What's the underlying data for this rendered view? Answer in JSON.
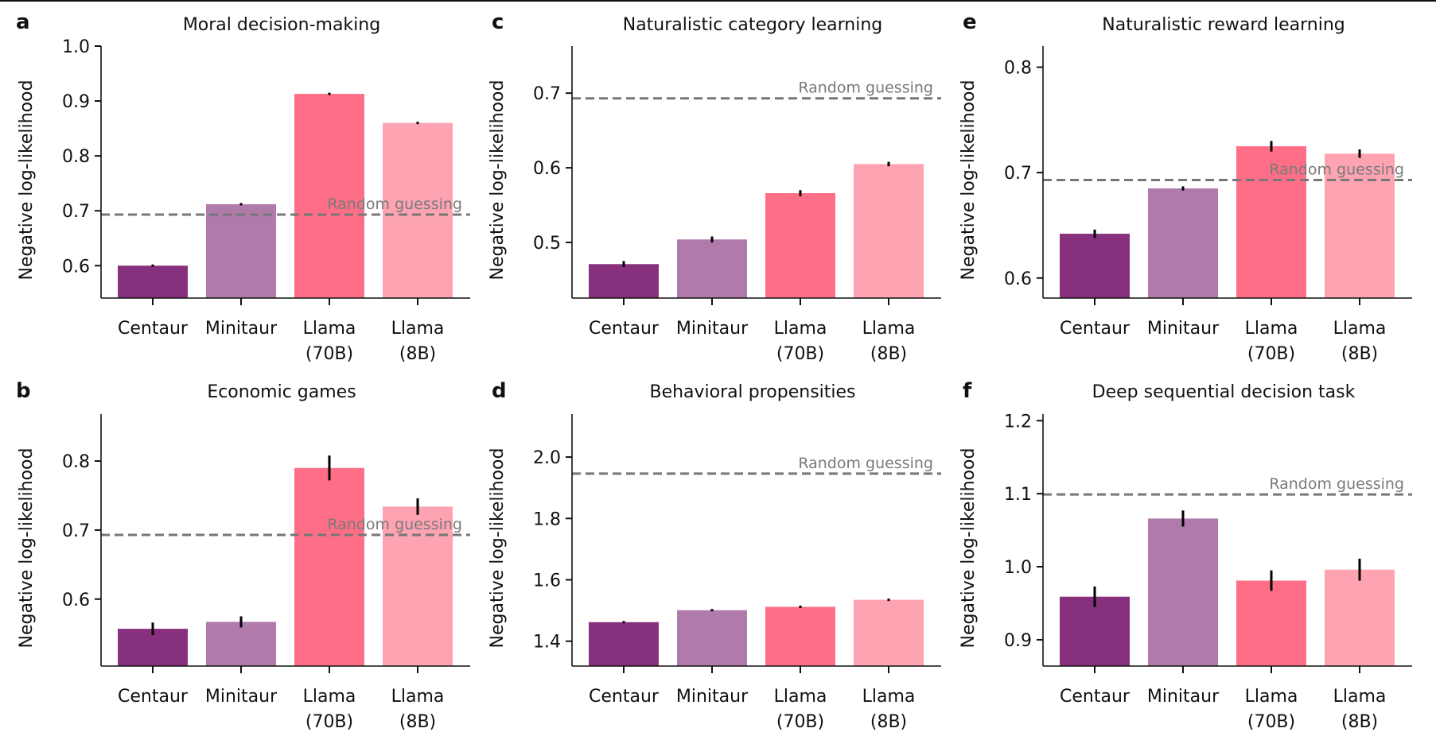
{
  "chart_data": [
    {
      "panel": "a",
      "type": "bar",
      "title": "Moral decision-making",
      "ylabel": "Negative log-likelihood",
      "xlabel": "",
      "categories": [
        "Centaur",
        "Minitaur",
        "Llama\n(70B)",
        "Llama\n(8B)"
      ],
      "values": [
        0.6,
        0.712,
        0.913,
        0.86
      ],
      "errors": [
        0.001,
        0.001,
        0.002,
        0.001
      ],
      "colors": [
        "#86307E",
        "#B07AAB",
        "#FE6F87",
        "#FDA3B2"
      ],
      "ylim": [
        0.541,
        1.0
      ],
      "yticks": [
        0.6,
        0.7,
        0.8,
        0.9,
        1.0
      ],
      "ytick_labels": [
        "0.6",
        "0.7",
        "0.8",
        "0.9",
        "1.0"
      ],
      "reference_line": {
        "value": 0.693,
        "label": "Random guessing"
      },
      "grid": false
    },
    {
      "panel": "b",
      "type": "bar",
      "title": "Economic games",
      "ylabel": "Negative log-likelihood",
      "xlabel": "",
      "categories": [
        "Centaur",
        "Minitaur",
        "Llama\n(70B)",
        "Llama\n(8B)"
      ],
      "values": [
        0.557,
        0.567,
        0.79,
        0.734
      ],
      "errors": [
        0.009,
        0.008,
        0.018,
        0.012
      ],
      "colors": [
        "#86307E",
        "#B07AAB",
        "#FE6F87",
        "#FDA3B2"
      ],
      "ylim": [
        0.503,
        0.868
      ],
      "yticks": [
        0.6,
        0.7,
        0.8
      ],
      "ytick_labels": [
        "0.6",
        "0.7",
        "0.8"
      ],
      "reference_line": {
        "value": 0.693,
        "label": "Random guessing"
      },
      "grid": false
    },
    {
      "panel": "c",
      "type": "bar",
      "title": "Naturalistic category learning",
      "ylabel": "Negative log-likelihood",
      "xlabel": "",
      "categories": [
        "Centaur",
        "Minitaur",
        "Llama\n(70B)",
        "Llama\n(8B)"
      ],
      "values": [
        0.471,
        0.504,
        0.566,
        0.605
      ],
      "errors": [
        0.004,
        0.004,
        0.004,
        0.003
      ],
      "colors": [
        "#86307E",
        "#B07AAB",
        "#FE6F87",
        "#FDA3B2"
      ],
      "ylim": [
        0.4255,
        0.763
      ],
      "yticks": [
        0.5,
        0.6,
        0.7
      ],
      "ytick_labels": [
        "0.5",
        "0.6",
        "0.7"
      ],
      "reference_line": {
        "value": 0.693,
        "label": "Random guessing"
      },
      "grid": false
    },
    {
      "panel": "d",
      "type": "bar",
      "title": "Behavioral propensities",
      "ylabel": "Negative log-likelihood",
      "xlabel": "",
      "categories": [
        "Centaur",
        "Minitaur",
        "Llama\n(70B)",
        "Llama\n(8B)"
      ],
      "values": [
        1.462,
        1.501,
        1.512,
        1.535
      ],
      "errors": [
        0.002,
        0.002,
        0.002,
        0.002
      ],
      "colors": [
        "#86307E",
        "#B07AAB",
        "#FE6F87",
        "#FDA3B2"
      ],
      "ylim": [
        1.319,
        2.14
      ],
      "yticks": [
        1.4,
        1.6,
        1.8,
        2.0
      ],
      "ytick_labels": [
        "1.4",
        "1.6",
        "1.8",
        "2.0"
      ],
      "reference_line": {
        "value": 1.946,
        "label": "Random guessing"
      },
      "grid": false
    },
    {
      "panel": "e",
      "type": "bar",
      "title": "Naturalistic reward learning",
      "ylabel": "Negative log-likelihood",
      "xlabel": "",
      "categories": [
        "Centaur",
        "Minitaur",
        "Llama\n(70B)",
        "Llama\n(8B)"
      ],
      "values": [
        0.642,
        0.685,
        0.725,
        0.718
      ],
      "errors": [
        0.004,
        0.002,
        0.005,
        0.004
      ],
      "colors": [
        "#86307E",
        "#B07AAB",
        "#FE6F87",
        "#FDA3B2"
      ],
      "ylim": [
        0.581,
        0.82
      ],
      "yticks": [
        0.6,
        0.7,
        0.8
      ],
      "ytick_labels": [
        "0.6",
        "0.7",
        "0.8"
      ],
      "reference_line": {
        "value": 0.693,
        "label": "Random guessing"
      },
      "grid": false
    },
    {
      "panel": "f",
      "type": "bar",
      "title": "Deep sequential decision task",
      "ylabel": "Negative log-likelihood",
      "xlabel": "",
      "categories": [
        "Centaur",
        "Minitaur",
        "Llama\n(70B)",
        "Llama\n(8B)"
      ],
      "values": [
        0.959,
        1.066,
        0.981,
        0.996
      ],
      "errors": [
        0.014,
        0.011,
        0.014,
        0.015
      ],
      "colors": [
        "#86307E",
        "#B07AAB",
        "#FE6F87",
        "#FDA3B2"
      ],
      "ylim": [
        0.864,
        1.209
      ],
      "yticks": [
        0.9,
        1.0,
        1.1,
        1.2
      ],
      "ytick_labels": [
        "0.9",
        "1.0",
        "1.1",
        "1.2"
      ],
      "reference_line": {
        "value": 1.099,
        "label": "Random guessing"
      },
      "grid": false
    }
  ]
}
